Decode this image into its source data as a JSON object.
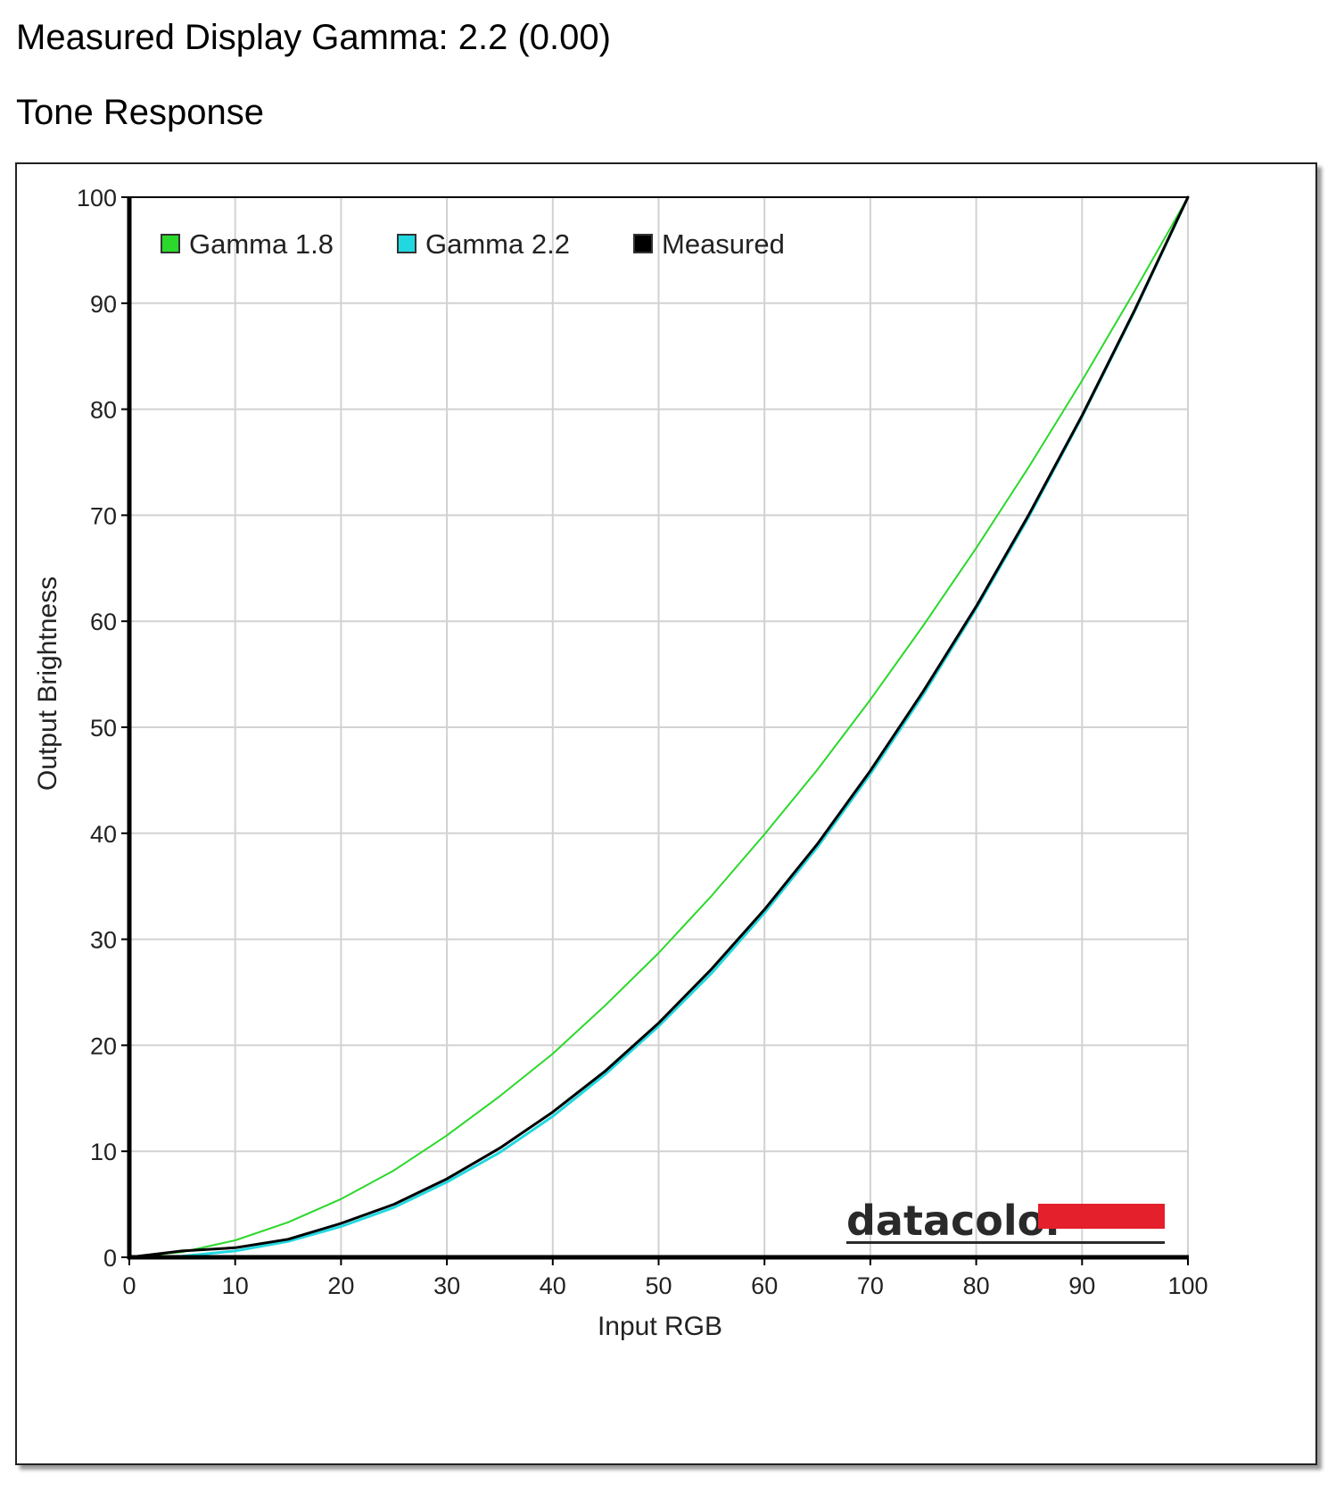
{
  "header": {
    "measured_gamma": "Measured Display Gamma: 2.2 (0.00)",
    "section_title": "Tone Response"
  },
  "logo": {
    "text": "datacolor",
    "accent_color": "#e3202b"
  },
  "chart_data": {
    "type": "line",
    "xlabel": "Input RGB",
    "ylabel": "Output Brightness",
    "xlim": [
      0,
      100
    ],
    "ylim": [
      0,
      100
    ],
    "xticks": [
      0,
      10,
      20,
      30,
      40,
      50,
      60,
      70,
      80,
      90,
      100
    ],
    "yticks": [
      0,
      10,
      20,
      30,
      40,
      50,
      60,
      70,
      80,
      90,
      100
    ],
    "grid": true,
    "legend_position": "top-left",
    "x": [
      0,
      5,
      10,
      15,
      20,
      25,
      30,
      35,
      40,
      45,
      50,
      55,
      60,
      65,
      70,
      75,
      80,
      85,
      90,
      95,
      100
    ],
    "series": [
      {
        "name": "Gamma 1.8",
        "color": "#2bd82b",
        "stroke_width": 2,
        "values": [
          0,
          0.5,
          1.6,
          3.3,
          5.5,
          8.2,
          11.5,
          15.2,
          19.2,
          23.8,
          28.7,
          34.1,
          39.9,
          46.0,
          52.6,
          59.6,
          66.9,
          74.6,
          82.7,
          91.2,
          100
        ]
      },
      {
        "name": "Gamma 2.2",
        "color": "#22d8e0",
        "stroke_width": 3,
        "values": [
          0,
          0.1,
          0.6,
          1.5,
          2.9,
          4.7,
          7.1,
          9.9,
          13.3,
          17.3,
          21.8,
          26.8,
          32.5,
          38.7,
          45.6,
          53.1,
          61.2,
          69.9,
          79.3,
          89.3,
          100
        ]
      },
      {
        "name": "Measured",
        "color": "#000000",
        "stroke_width": 3,
        "values": [
          0,
          0.6,
          0.9,
          1.7,
          3.2,
          5.0,
          7.4,
          10.3,
          13.7,
          17.6,
          22.1,
          27.2,
          32.8,
          39.0,
          45.9,
          53.4,
          61.4,
          70.1,
          79.4,
          89.4,
          100
        ]
      }
    ]
  }
}
